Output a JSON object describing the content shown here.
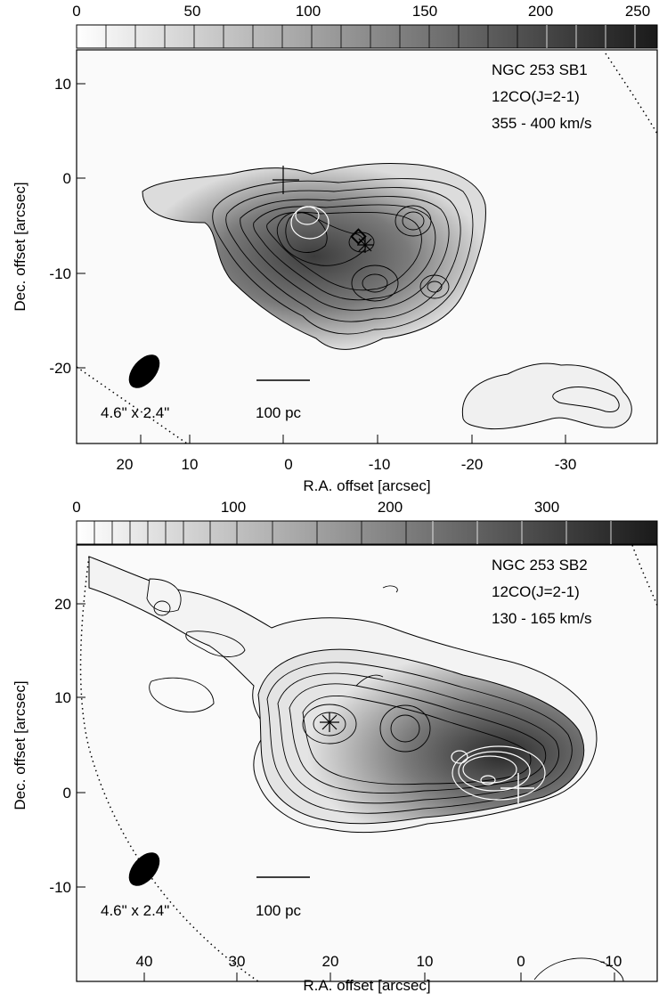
{
  "panels": [
    {
      "id": "sb1",
      "colorbar": {
        "ticks": [
          "0",
          "50",
          "100",
          "150",
          "200",
          "250"
        ],
        "range": [
          0,
          250
        ]
      },
      "annotations": [
        "NGC 253 SB1",
        "12CO(J=2-1)",
        "355 - 400 km/s"
      ],
      "beam_label": "4.6\" x 2.4\"",
      "scalebar_label": "100 pc",
      "y_axis": {
        "title": "Dec. offset [arcsec]",
        "ticks": [
          "10",
          "0",
          "-10",
          "-20"
        ]
      },
      "x_axis": {
        "title": "R.A. offset [arcsec]",
        "ticks": [
          "20",
          "10",
          "0",
          "-10",
          "-20",
          "-30"
        ]
      }
    },
    {
      "id": "sb2",
      "colorbar": {
        "ticks": [
          "0",
          "100",
          "200",
          "300"
        ],
        "range": [
          0,
          370
        ]
      },
      "annotations": [
        "NGC 253 SB2",
        "12CO(J=2-1)",
        "130 - 165 km/s"
      ],
      "beam_label": "4.6\" x 2.4\"",
      "scalebar_label": "100 pc",
      "y_axis": {
        "title": "Dec. offset [arcsec]",
        "ticks": [
          "20",
          "10",
          "0",
          "-10"
        ]
      },
      "x_axis": {
        "title": "R.A. offset [arcsec]",
        "ticks": [
          "40",
          "30",
          "20",
          "10",
          "0",
          "-10"
        ]
      }
    }
  ]
}
